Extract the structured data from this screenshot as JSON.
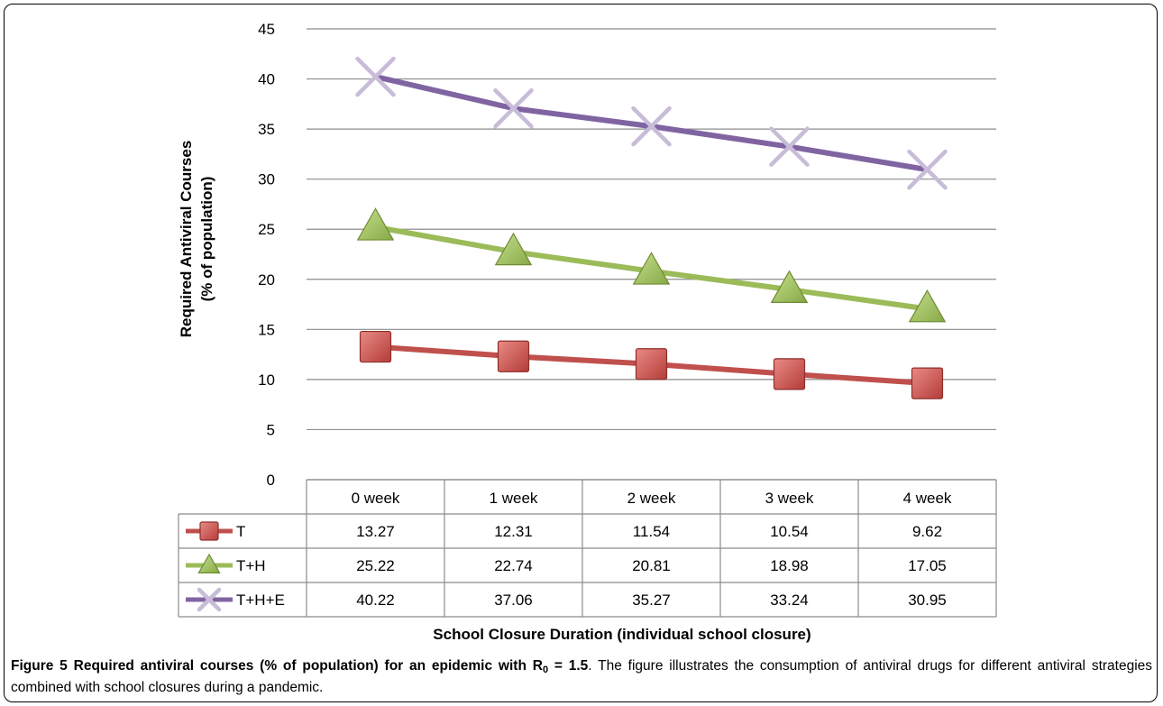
{
  "chart_data": {
    "type": "line",
    "categories": [
      "0 week",
      "1 week",
      "2 week",
      "3 week",
      "4 week"
    ],
    "series": [
      {
        "name": "T",
        "values": [
          13.27,
          12.31,
          11.54,
          10.54,
          9.62
        ],
        "color": "#c0504d",
        "marker": "square"
      },
      {
        "name": "T+H",
        "values": [
          25.22,
          22.74,
          20.81,
          18.98,
          17.05
        ],
        "color": "#9bbb59",
        "marker": "triangle"
      },
      {
        "name": "T+H+E",
        "values": [
          40.22,
          37.06,
          35.27,
          33.24,
          30.95
        ],
        "color": "#8064a2",
        "marker": "x"
      }
    ],
    "y_ticks": [
      "0",
      "5",
      "10",
      "15",
      "20",
      "25",
      "30",
      "35",
      "40",
      "45"
    ],
    "ylim": [
      0,
      45
    ],
    "grid": true,
    "legend": "data-table",
    "ylabel_line1": "Required Antiviral Courses",
    "ylabel_line2": "(% of population)",
    "xlabel": "School Closure Duration (individual school closure)",
    "table_values": [
      [
        "13.27",
        "12.31",
        "11.54",
        "10.54",
        "9.62"
      ],
      [
        "25.22",
        "22.74",
        "20.81",
        "18.98",
        "17.05"
      ],
      [
        "40.22",
        "37.06",
        "35.27",
        "33.24",
        "30.95"
      ]
    ]
  },
  "caption": {
    "figure_label": "Figure 5",
    "title_main": "Required antiviral courses (% of population) for an epidemic with R",
    "title_sub": "0",
    "title_end": " = 1.5",
    "body": ". The figure illustrates the consumption of antiviral drugs for different antiviral strategies combined with school closures during a pandemic."
  }
}
